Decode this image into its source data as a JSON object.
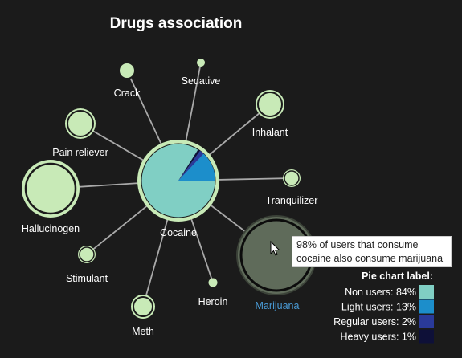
{
  "title": "Drugs association",
  "center": {
    "name": "Cocaine",
    "slices": [
      84,
      13,
      2,
      1
    ]
  },
  "nodes": [
    {
      "name": "Crack"
    },
    {
      "name": "Sedative"
    },
    {
      "name": "Inhalant"
    },
    {
      "name": "Pain reliever"
    },
    {
      "name": "Tranquilizer"
    },
    {
      "name": "Hallucinogen"
    },
    {
      "name": "Stimulant"
    },
    {
      "name": "Heroin"
    },
    {
      "name": "Meth"
    },
    {
      "name": "Marijuana",
      "active": true
    }
  ],
  "tooltip": {
    "line1": "98% of users that consume",
    "line2": "cocaine also consume marijuana"
  },
  "legend": {
    "title": "Pie chart label:",
    "items": [
      {
        "label": "Non users: 84%",
        "color": "#80cfc4"
      },
      {
        "label": "Light users: 13%",
        "color": "#1c8ecb"
      },
      {
        "label": "Regular users: 2%",
        "color": "#2a3a9a"
      },
      {
        "label": "Heavy users: 1%",
        "color": "#0e1038"
      }
    ]
  },
  "colors": {
    "background": "#1b1b1b",
    "node_fill": "#c8eab7",
    "edge": "#a9a9a9",
    "active_node": "#5f6b5a"
  }
}
